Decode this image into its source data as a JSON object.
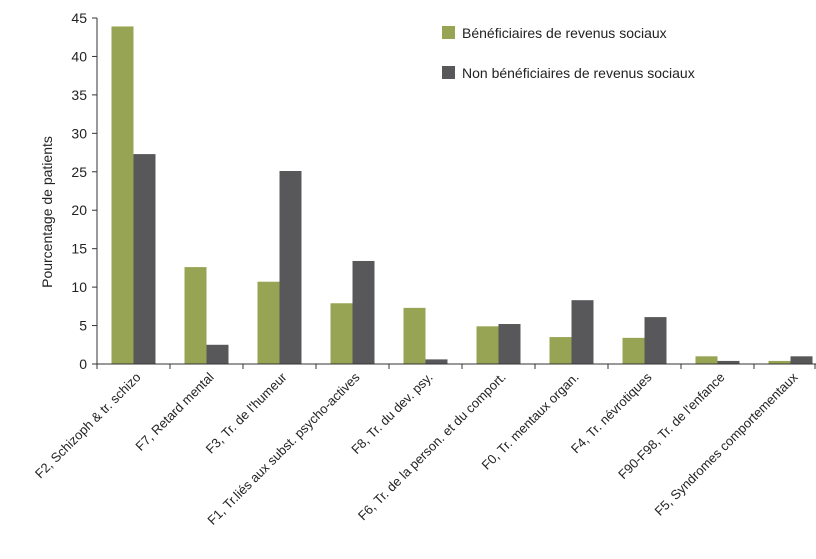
{
  "chart_data": {
    "type": "bar",
    "title": "",
    "xlabel": "",
    "ylabel": "Pourcentage de patients",
    "ylim": [
      0,
      45
    ],
    "yticks": [
      0,
      5,
      10,
      15,
      20,
      25,
      30,
      35,
      40,
      45
    ],
    "grid": false,
    "legend_position": "top-right",
    "categories": [
      "F2, Schizoph & tr. schizo",
      "F7, Retard mental",
      "F3, Tr. de l'humeur",
      "F1, Tr.liés aux subst. psycho-actives",
      "F8, Tr. du dev. psy.",
      "F6, Tr. de la person. et du comport.",
      "F0, Tr. mentaux organ.",
      "F4, Tr. névrotiques",
      "F90-F98, Tr. de l'enfance",
      "F5, Syndromes comportementaux"
    ],
    "series": [
      {
        "name": "Bénéficiaires de revenus sociaux",
        "color": "#96a453",
        "values": [
          43.9,
          12.6,
          10.7,
          7.9,
          7.3,
          4.9,
          3.5,
          3.4,
          1.0,
          0.4
        ]
      },
      {
        "name": "Non bénéficiaires de revenus sociaux",
        "color": "#58585a",
        "values": [
          27.3,
          2.5,
          25.1,
          13.4,
          0.6,
          5.2,
          8.3,
          6.1,
          0.4,
          1.0
        ]
      }
    ]
  }
}
